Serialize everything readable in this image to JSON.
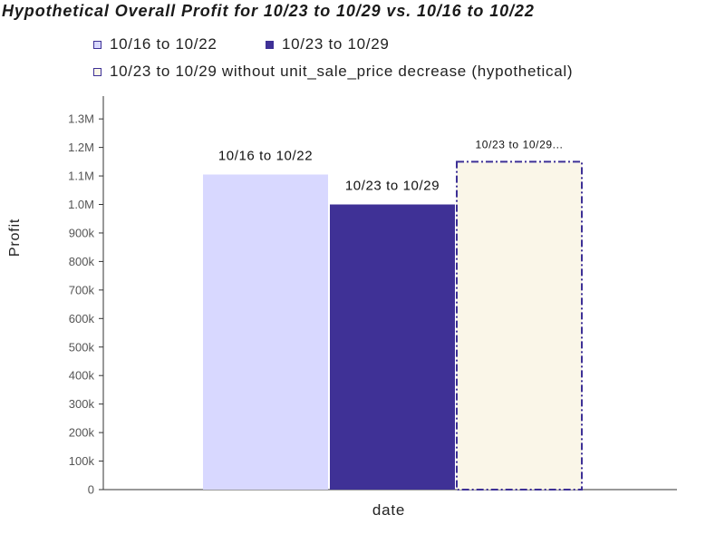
{
  "chart_data": {
    "type": "bar",
    "title": "Hypothetical Overall Profit for 10/23 to 10/29 vs. 10/16 to 10/22",
    "xlabel": "date",
    "ylabel": "Profit",
    "ylim": [
      0,
      1380000
    ],
    "yticks": [
      0,
      100000,
      200000,
      300000,
      400000,
      500000,
      600000,
      700000,
      800000,
      900000,
      1000000,
      1100000,
      1200000,
      1300000
    ],
    "ytick_labels": [
      "0",
      "100k",
      "200k",
      "300k",
      "400k",
      "500k",
      "600k",
      "700k",
      "800k",
      "900k",
      "1.0M",
      "1.1M",
      "1.2M",
      "1.3M"
    ],
    "grid": false,
    "legend_placement": "top",
    "series": [
      {
        "name": "10/16 to 10/22",
        "data_label": "10/16 to 10/22",
        "value": 1105000,
        "fill": "#d8d8ff",
        "stroke": "none",
        "dashed": false
      },
      {
        "name": "10/23 to 10/29",
        "data_label": "10/23 to 10/29",
        "value": 1000000,
        "fill": "#3f3196",
        "stroke": "none",
        "dashed": false
      },
      {
        "name": "10/23 to 10/29 without unit_sale_price decrease (hypothetical)",
        "data_label": "10/23 to 10/29...",
        "value": 1150000,
        "fill": "#faf6e8",
        "stroke": "#3d3096",
        "dashed": true
      }
    ]
  }
}
